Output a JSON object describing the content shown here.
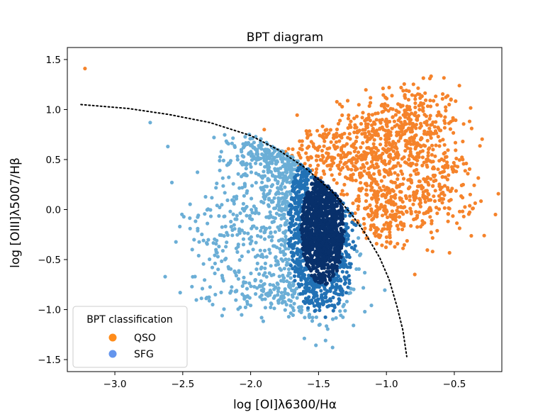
{
  "chart_data": {
    "type": "scatter",
    "title": "BPT diagram",
    "xlabel": "log [OI]λ6300/Hα",
    "ylabel": "log [OIII]λ5007/Hβ",
    "xlim": [
      -3.35,
      -0.15
    ],
    "ylim": [
      -1.62,
      1.62
    ],
    "xticks": [
      -3.0,
      -2.5,
      -2.0,
      -1.5,
      -1.0,
      -0.5
    ],
    "xtick_labels": [
      "−3.0",
      "−2.5",
      "−2.0",
      "−1.5",
      "−1.0",
      "−0.5"
    ],
    "yticks": [
      -1.5,
      -1.0,
      -0.5,
      0.0,
      0.5,
      1.0,
      1.5
    ],
    "ytick_labels": [
      "−1.5",
      "−1.0",
      "−0.5",
      "0.0",
      "0.5",
      "1.0",
      "1.5"
    ],
    "grid": false,
    "legend": {
      "title": "BPT classification",
      "placement": "lower-left",
      "entries": [
        {
          "label": "QSO",
          "color": "#ff8c1a"
        },
        {
          "label": "SFG",
          "color": "#6495ed"
        }
      ]
    },
    "colors": {
      "qso_points": "#f5832b",
      "sfg_light": "#6baed6",
      "sfg_mid": "#2171b5",
      "sfg_dense": "#08306b",
      "divider": "#000000"
    },
    "divider": {
      "style": "dotted",
      "points": [
        [
          -3.25,
          1.05
        ],
        [
          -2.9,
          1.01
        ],
        [
          -2.6,
          0.95
        ],
        [
          -2.3,
          0.87
        ],
        [
          -2.0,
          0.74
        ],
        [
          -1.8,
          0.6
        ],
        [
          -1.6,
          0.42
        ],
        [
          -1.4,
          0.18
        ],
        [
          -1.25,
          -0.06
        ],
        [
          -1.15,
          -0.25
        ],
        [
          -1.05,
          -0.48
        ],
        [
          -0.98,
          -0.7
        ],
        [
          -0.92,
          -0.98
        ],
        [
          -0.88,
          -1.2
        ],
        [
          -0.85,
          -1.47
        ]
      ]
    },
    "series": [
      {
        "name": "QSO",
        "clusters": [
          {
            "center": [
              -0.85,
              0.85
            ],
            "spread": [
              0.2,
              0.2
            ],
            "count": 350
          },
          {
            "center": [
              -0.7,
              0.2
            ],
            "spread": [
              0.18,
              0.22
            ],
            "count": 300
          },
          {
            "center": [
              -1.15,
              0.5
            ],
            "spread": [
              0.17,
              0.22
            ],
            "count": 260
          },
          {
            "center": [
              -1.05,
              -0.05
            ],
            "spread": [
              0.12,
              0.18
            ],
            "count": 160
          },
          {
            "center": [
              -1.45,
              0.6
            ],
            "spread": [
              0.12,
              0.12
            ],
            "count": 110
          }
        ],
        "outliers": [
          [
            -3.22,
            1.41
          ],
          [
            -0.28,
            -0.26
          ],
          [
            -0.66,
            -0.42
          ],
          [
            -0.68,
            1.31
          ],
          [
            -0.98,
            1.22
          ],
          [
            -1.9,
            0.8
          ]
        ]
      },
      {
        "name": "SFG",
        "clusters": [
          {
            "center": [
              -1.45,
              -0.15
            ],
            "spread": [
              0.1,
              0.35
            ],
            "count": 1100
          },
          {
            "center": [
              -1.65,
              0.25
            ],
            "spread": [
              0.18,
              0.3
            ],
            "count": 700
          },
          {
            "center": [
              -1.55,
              -0.5
            ],
            "spread": [
              0.15,
              0.25
            ],
            "count": 500
          },
          {
            "center": [
              -1.85,
              0.55
            ],
            "spread": [
              0.15,
              0.12
            ],
            "count": 220
          },
          {
            "center": [
              -2.1,
              -0.3
            ],
            "spread": [
              0.2,
              0.3
            ],
            "count": 200
          },
          {
            "center": [
              -1.75,
              -0.85
            ],
            "spread": [
              0.25,
              0.08
            ],
            "count": 150
          }
        ],
        "outliers": [
          [
            -2.74,
            0.87
          ],
          [
            -2.61,
            0.63
          ],
          [
            -2.58,
            0.27
          ],
          [
            -2.43,
            -0.4
          ],
          [
            -2.39,
            -0.19
          ],
          [
            -2.26,
            -0.85
          ],
          [
            -2.25,
            -0.31
          ],
          [
            -2.21,
            -0.66
          ],
          [
            -2.05,
            -0.68
          ],
          [
            -2.21,
            -1.06
          ],
          [
            -2.28,
            -0.95
          ],
          [
            -2.41,
            -0.67
          ],
          [
            -2.27,
            0.72
          ],
          [
            -2.03,
            0.46
          ]
        ]
      }
    ]
  }
}
